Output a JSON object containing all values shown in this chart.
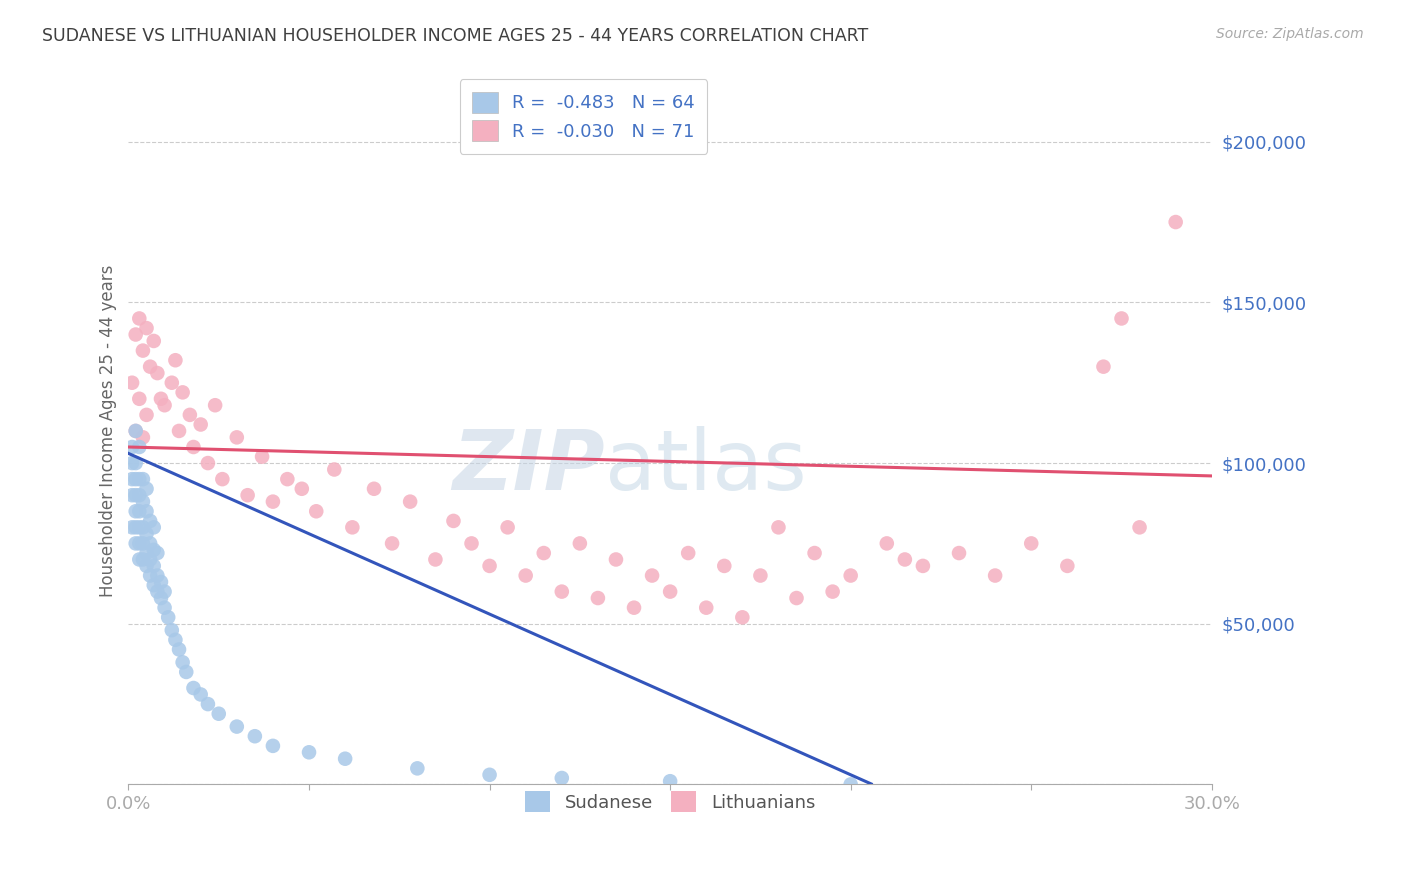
{
  "title": "SUDANESE VS LITHUANIAN HOUSEHOLDER INCOME AGES 25 - 44 YEARS CORRELATION CHART",
  "source": "Source: ZipAtlas.com",
  "ylabel": "Householder Income Ages 25 - 44 years",
  "xlim": [
    0.0,
    0.3
  ],
  "ylim": [
    0,
    220000
  ],
  "color_sudanese": "#a8c8e8",
  "color_lithuanian": "#f4b0c0",
  "color_line_sudanese": "#3355bb",
  "color_line_lithuanian": "#e05070",
  "color_title": "#404040",
  "color_axis_labels": "#4472c4",
  "background_color": "#ffffff",
  "grid_color": "#cccccc",
  "watermark_text": "ZIPatlas",
  "r_sudanese": -0.483,
  "n_sudanese": 64,
  "r_lithuanian": -0.03,
  "n_lithuanian": 71,
  "sud_x": [
    0.001,
    0.001,
    0.001,
    0.001,
    0.001,
    0.002,
    0.002,
    0.002,
    0.002,
    0.002,
    0.002,
    0.002,
    0.003,
    0.003,
    0.003,
    0.003,
    0.003,
    0.003,
    0.003,
    0.004,
    0.004,
    0.004,
    0.004,
    0.004,
    0.005,
    0.005,
    0.005,
    0.005,
    0.005,
    0.006,
    0.006,
    0.006,
    0.006,
    0.007,
    0.007,
    0.007,
    0.007,
    0.008,
    0.008,
    0.008,
    0.009,
    0.009,
    0.01,
    0.01,
    0.011,
    0.012,
    0.013,
    0.014,
    0.015,
    0.016,
    0.018,
    0.02,
    0.022,
    0.025,
    0.03,
    0.035,
    0.04,
    0.05,
    0.06,
    0.08,
    0.1,
    0.12,
    0.15,
    0.2
  ],
  "sud_y": [
    80000,
    90000,
    95000,
    100000,
    105000,
    75000,
    80000,
    85000,
    90000,
    95000,
    100000,
    110000,
    70000,
    75000,
    80000,
    85000,
    90000,
    95000,
    105000,
    70000,
    75000,
    80000,
    88000,
    95000,
    68000,
    72000,
    78000,
    85000,
    92000,
    65000,
    70000,
    75000,
    82000,
    62000,
    68000,
    73000,
    80000,
    60000,
    65000,
    72000,
    58000,
    63000,
    55000,
    60000,
    52000,
    48000,
    45000,
    42000,
    38000,
    35000,
    30000,
    28000,
    25000,
    22000,
    18000,
    15000,
    12000,
    10000,
    8000,
    5000,
    3000,
    2000,
    1000,
    0
  ],
  "lit_x": [
    0.001,
    0.002,
    0.002,
    0.003,
    0.003,
    0.004,
    0.004,
    0.005,
    0.005,
    0.006,
    0.007,
    0.008,
    0.009,
    0.01,
    0.012,
    0.013,
    0.014,
    0.015,
    0.017,
    0.018,
    0.02,
    0.022,
    0.024,
    0.026,
    0.03,
    0.033,
    0.037,
    0.04,
    0.044,
    0.048,
    0.052,
    0.057,
    0.062,
    0.068,
    0.073,
    0.078,
    0.085,
    0.09,
    0.095,
    0.1,
    0.105,
    0.11,
    0.115,
    0.12,
    0.125,
    0.13,
    0.135,
    0.14,
    0.145,
    0.15,
    0.155,
    0.16,
    0.165,
    0.17,
    0.175,
    0.18,
    0.185,
    0.19,
    0.195,
    0.2,
    0.21,
    0.215,
    0.22,
    0.23,
    0.24,
    0.25,
    0.26,
    0.27,
    0.275,
    0.28,
    0.29
  ],
  "lit_y": [
    125000,
    140000,
    110000,
    145000,
    120000,
    135000,
    108000,
    142000,
    115000,
    130000,
    138000,
    128000,
    120000,
    118000,
    125000,
    132000,
    110000,
    122000,
    115000,
    105000,
    112000,
    100000,
    118000,
    95000,
    108000,
    90000,
    102000,
    88000,
    95000,
    92000,
    85000,
    98000,
    80000,
    92000,
    75000,
    88000,
    70000,
    82000,
    75000,
    68000,
    80000,
    65000,
    72000,
    60000,
    75000,
    58000,
    70000,
    55000,
    65000,
    60000,
    72000,
    55000,
    68000,
    52000,
    65000,
    80000,
    58000,
    72000,
    60000,
    65000,
    75000,
    70000,
    68000,
    72000,
    65000,
    75000,
    68000,
    130000,
    145000,
    80000,
    175000
  ]
}
